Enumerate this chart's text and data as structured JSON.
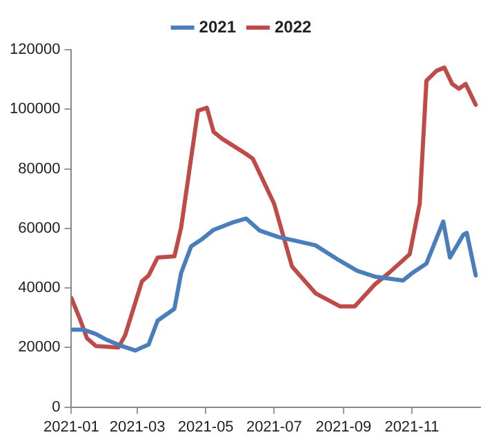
{
  "chart_data": {
    "type": "line",
    "legend": "top",
    "grid": false,
    "marker": "none",
    "line_style": "solid",
    "xlim": [
      "2021-01",
      "2022-01"
    ],
    "xticks": [
      "2021-01",
      "2021-03",
      "2021-05",
      "2021-07",
      "2021-09",
      "2021-11"
    ],
    "ylim": [
      0,
      120000
    ],
    "yticks": [
      0,
      20000,
      40000,
      60000,
      80000,
      100000,
      120000
    ],
    "series": [
      {
        "name": "2021",
        "color": "#4a7ebb",
        "x": [
          "2021-01-01",
          "2021-01-12",
          "2021-01-23",
          "2021-02-02",
          "2021-02-15",
          "2021-02-27",
          "2021-03-11",
          "2021-03-19",
          "2021-04-03",
          "2021-04-09",
          "2021-04-18",
          "2021-04-28",
          "2021-05-08",
          "2021-05-25",
          "2021-06-06",
          "2021-06-18",
          "2021-07-05",
          "2021-07-22",
          "2021-08-07",
          "2021-08-28",
          "2021-09-13",
          "2021-09-29",
          "2021-10-24",
          "2021-11-02",
          "2021-11-14",
          "2021-11-29",
          "2021-12-05",
          "2021-12-17",
          "2021-12-20",
          "2021-12-28"
        ],
        "values": [
          26000,
          26000,
          24500,
          22500,
          20500,
          19000,
          21000,
          29000,
          33000,
          45000,
          54000,
          56500,
          59500,
          62000,
          63300,
          59300,
          57100,
          55700,
          54300,
          49300,
          45800,
          43800,
          42500,
          45200,
          48200,
          62300,
          50200,
          57900,
          58500,
          44200
        ]
      },
      {
        "name": "2022",
        "color": "#be4b48",
        "x": [
          "2021-01-01",
          "2021-01-08",
          "2021-01-15",
          "2021-01-23",
          "2021-02-12",
          "2021-02-18",
          "2021-03-05",
          "2021-03-11",
          "2021-03-19",
          "2021-04-03",
          "2021-04-09",
          "2021-04-24",
          "2021-05-02",
          "2021-05-08",
          "2021-05-16",
          "2021-05-27",
          "2021-06-06",
          "2021-06-12",
          "2021-07-01",
          "2021-07-17",
          "2021-08-07",
          "2021-08-29",
          "2021-09-11",
          "2021-09-29",
          "2021-10-12",
          "2021-10-30",
          "2021-11-08",
          "2021-11-14",
          "2021-11-23",
          "2021-11-30",
          "2021-12-07",
          "2021-12-13",
          "2021-12-19",
          "2021-12-28"
        ],
        "values": [
          36600,
          30200,
          23100,
          20500,
          20000,
          24100,
          42200,
          44200,
          50200,
          50600,
          60300,
          99500,
          100500,
          92400,
          90000,
          87400,
          85000,
          83400,
          68300,
          47200,
          38200,
          33800,
          33800,
          41200,
          45200,
          51300,
          68300,
          109600,
          112900,
          114000,
          108500,
          106900,
          108500,
          101500
        ]
      }
    ]
  }
}
